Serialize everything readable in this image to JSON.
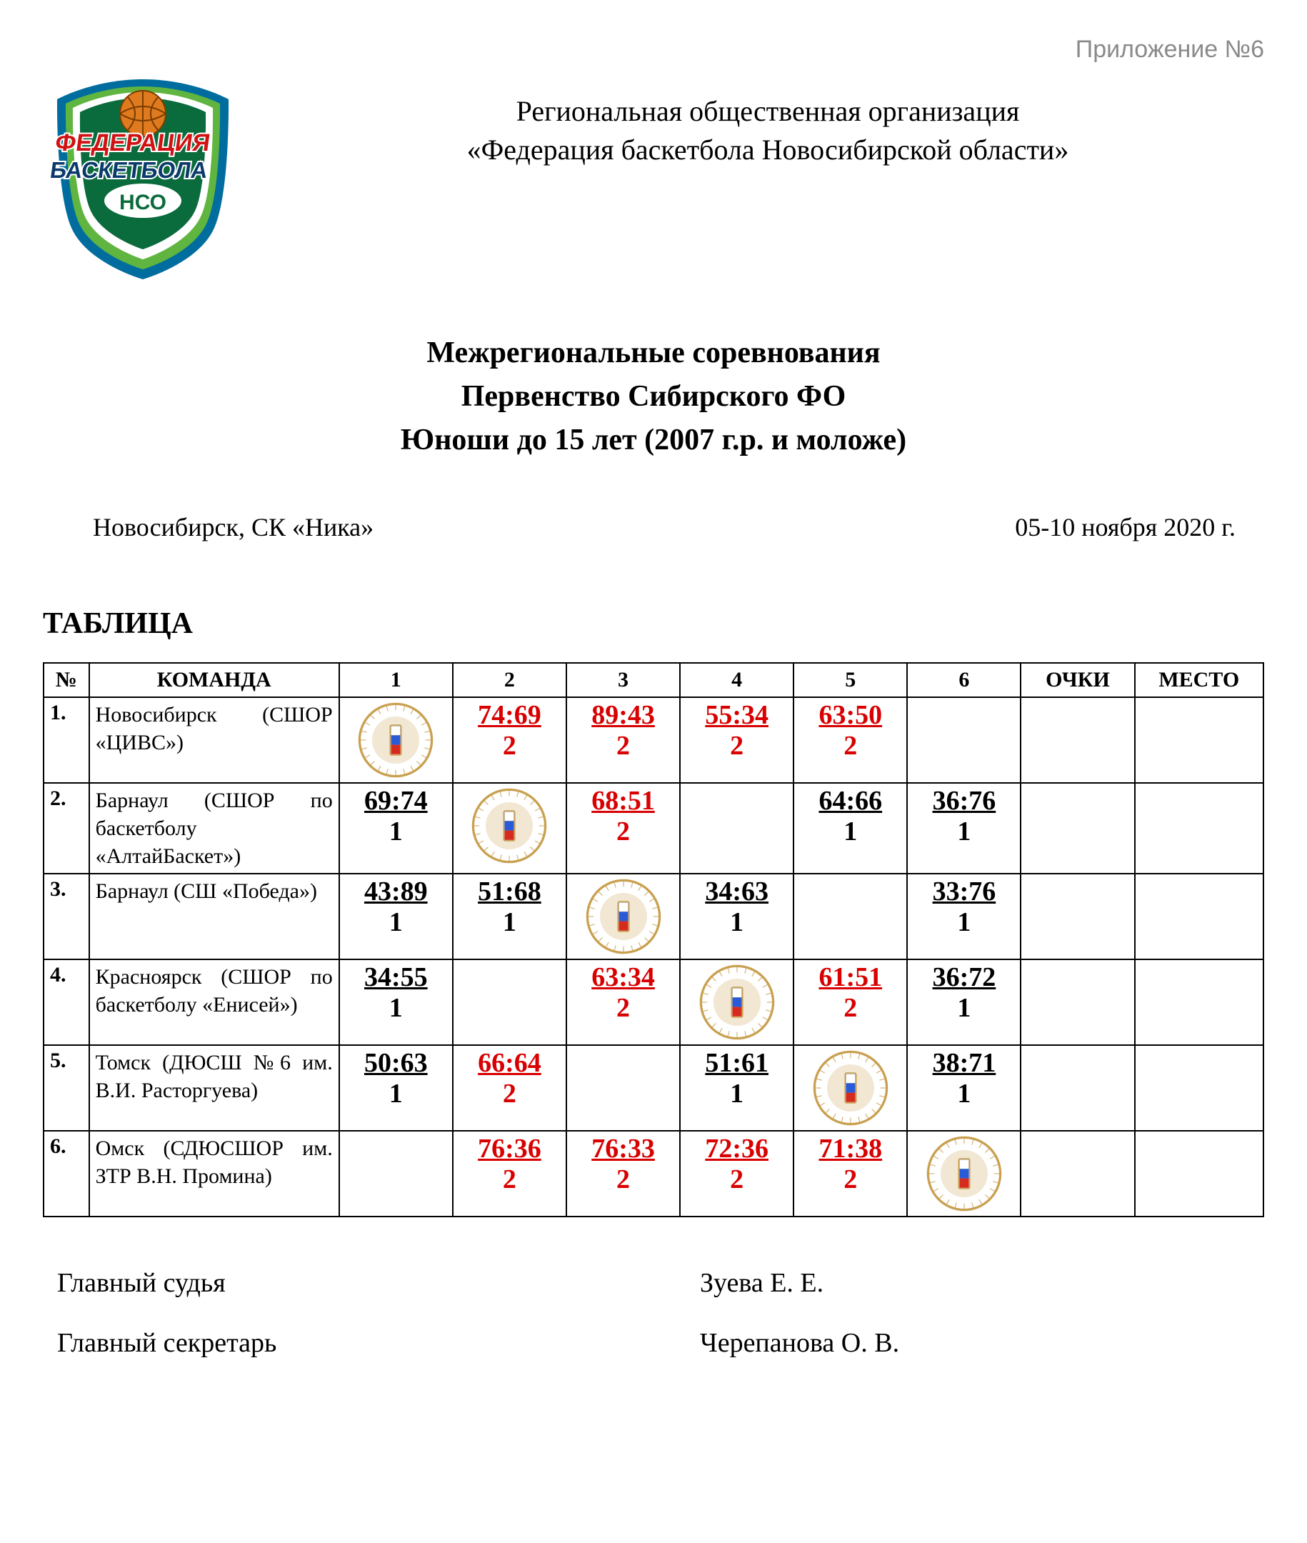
{
  "appendix": "Приложение №6",
  "org": {
    "line1": "Региональная общественная организация",
    "line2": "«Федерация баскетбола Новосибирской области»"
  },
  "logo": {
    "text_top": "ФЕДЕРАЦИЯ",
    "text_mid": "БАСКЕТБОЛА",
    "text_bot": "НСО",
    "shield_inner": "#5fb540",
    "shield_outer": "#0a6b3c",
    "shield_border": "#006d9e",
    "ball": "#e07a1e",
    "text_top_color": "#d11212",
    "text_outline": "#0a3a6b"
  },
  "competition": {
    "line1": "Межрегиональные соревнования",
    "line2": "Первенство Сибирского ФО",
    "line3": "Юноши до 15 лет (2007 г.р. и моложе)"
  },
  "venue": "Новосибирск, СК «Ника»",
  "dates": "05-10 ноября 2020 г.",
  "section_title": "ТАБЛИЦА",
  "columns": {
    "num": "№",
    "team": "КОМАНДА",
    "g1": "1",
    "g2": "2",
    "g3": "3",
    "g4": "4",
    "g5": "5",
    "g6": "6",
    "points": "ОЧКИ",
    "place": "МЕСТО"
  },
  "win_color": "#d80000",
  "loss_color": "#000000",
  "rows": [
    {
      "num": "1.",
      "team": "Новосибирск (СШОР «ЦИВС»)",
      "cells": [
        {
          "type": "diag"
        },
        {
          "type": "score",
          "score": "74:69",
          "pts": "2",
          "result": "win"
        },
        {
          "type": "score",
          "score": "89:43",
          "pts": "2",
          "result": "win"
        },
        {
          "type": "score",
          "score": "55:34",
          "pts": "2",
          "result": "win"
        },
        {
          "type": "score",
          "score": "63:50",
          "pts": "2",
          "result": "win"
        },
        {
          "type": "empty"
        }
      ]
    },
    {
      "num": "2.",
      "team": "Барнаул (СШОР по баскетболу «АлтайБаскет»)",
      "cells": [
        {
          "type": "score",
          "score": "69:74",
          "pts": "1",
          "result": "loss"
        },
        {
          "type": "diag"
        },
        {
          "type": "score",
          "score": "68:51",
          "pts": "2",
          "result": "win"
        },
        {
          "type": "empty"
        },
        {
          "type": "score",
          "score": "64:66",
          "pts": "1",
          "result": "loss"
        },
        {
          "type": "score",
          "score": "36:76",
          "pts": "1",
          "result": "loss"
        }
      ]
    },
    {
      "num": "3.",
      "team": "Барнаул (СШ «Победа»)",
      "cells": [
        {
          "type": "score",
          "score": "43:89",
          "pts": "1",
          "result": "loss"
        },
        {
          "type": "score",
          "score": "51:68",
          "pts": "1",
          "result": "loss"
        },
        {
          "type": "diag"
        },
        {
          "type": "score",
          "score": "34:63",
          "pts": "1",
          "result": "loss"
        },
        {
          "type": "empty"
        },
        {
          "type": "score",
          "score": "33:76",
          "pts": "1",
          "result": "loss"
        }
      ]
    },
    {
      "num": "4.",
      "team": "Красноярск (СШОР по баскетболу «Енисей»)",
      "cells": [
        {
          "type": "score",
          "score": "34:55",
          "pts": "1",
          "result": "loss"
        },
        {
          "type": "empty"
        },
        {
          "type": "score",
          "score": "63:34",
          "pts": "2",
          "result": "win"
        },
        {
          "type": "diag"
        },
        {
          "type": "score",
          "score": "61:51",
          "pts": "2",
          "result": "win"
        },
        {
          "type": "score",
          "score": "36:72",
          "pts": "1",
          "result": "loss"
        }
      ]
    },
    {
      "num": "5.",
      "team": "Томск (ДЮСШ №6 им. В.И. Расторгуева)",
      "cells": [
        {
          "type": "score",
          "score": "50:63",
          "pts": "1",
          "result": "loss"
        },
        {
          "type": "score",
          "score": "66:64",
          "pts": "2",
          "result": "win"
        },
        {
          "type": "empty"
        },
        {
          "type": "score",
          "score": "51:61",
          "pts": "1",
          "result": "loss"
        },
        {
          "type": "diag"
        },
        {
          "type": "score",
          "score": "38:71",
          "pts": "1",
          "result": "loss"
        }
      ]
    },
    {
      "num": "6.",
      "team": "Омск (СДЮСШОР им. ЗТР В.Н. Промина)",
      "cells": [
        {
          "type": "empty"
        },
        {
          "type": "score",
          "score": "76:36",
          "pts": "2",
          "result": "win"
        },
        {
          "type": "score",
          "score": "76:33",
          "pts": "2",
          "result": "win"
        },
        {
          "type": "score",
          "score": "72:36",
          "pts": "2",
          "result": "win"
        },
        {
          "type": "score",
          "score": "71:38",
          "pts": "2",
          "result": "win"
        },
        {
          "type": "diag"
        }
      ]
    }
  ],
  "signatures": [
    {
      "role": "Главный судья",
      "name": "Зуева Е. Е."
    },
    {
      "role": "Главный секретарь",
      "name": "Черепанова О. В."
    }
  ],
  "emblem": {
    "ring": "#c9a050",
    "white": "#ffffff",
    "blue": "#2a5bd7",
    "red": "#d52b1e"
  }
}
